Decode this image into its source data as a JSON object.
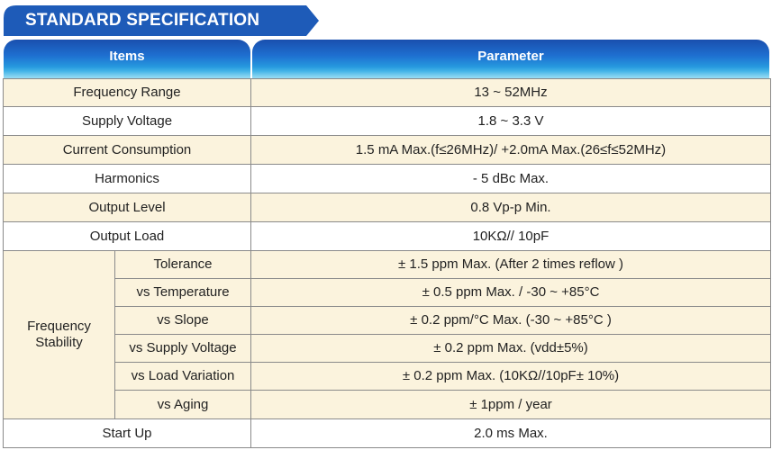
{
  "section_title": "STANDARD SPECIFICATION",
  "colors": {
    "banner": "#1e5bb8",
    "header_top": "#1a4fae",
    "header_bottom": "#6fd0ef",
    "row_tint": "#fbf3dd"
  },
  "header": {
    "items": "Items",
    "parameter": "Parameter"
  },
  "rows": [
    {
      "item": "Frequency Range",
      "value": "13 ~ 52MHz"
    },
    {
      "item": "Supply Voltage",
      "value": "1.8 ~ 3.3 V"
    },
    {
      "item": "Current Consumption",
      "value": "1.5 mA Max.(f≤26MHz)/ +2.0mA Max.(26≤f≤52MHz)"
    },
    {
      "item": "Harmonics",
      "value": "- 5 dBc Max."
    },
    {
      "item": "Output Level",
      "value": "0.8 Vp-p Min."
    },
    {
      "item": "Output Load",
      "value": "10KΩ// 10pF"
    }
  ],
  "stability": {
    "group_line1": "Frequency",
    "group_line2": "Stability",
    "rows": [
      {
        "item": "Tolerance",
        "value": "± 1.5 ppm Max. (After 2 times reflow )"
      },
      {
        "item": "vs Temperature",
        "value": "± 0.5 ppm Max. / -30 ~ +85°C"
      },
      {
        "item": "vs Slope",
        "value": "± 0.2 ppm/°C Max. (-30 ~ +85°C )"
      },
      {
        "item": "vs Supply Voltage",
        "value": "± 0.2 ppm Max. (vdd±5%)"
      },
      {
        "item": "vs Load Variation",
        "value": "± 0.2 ppm Max. (10KΩ//10pF± 10%)"
      },
      {
        "item": "vs Aging",
        "value": "± 1ppm / year"
      }
    ]
  },
  "start_up": {
    "item": "Start Up",
    "value": "2.0 ms Max."
  }
}
